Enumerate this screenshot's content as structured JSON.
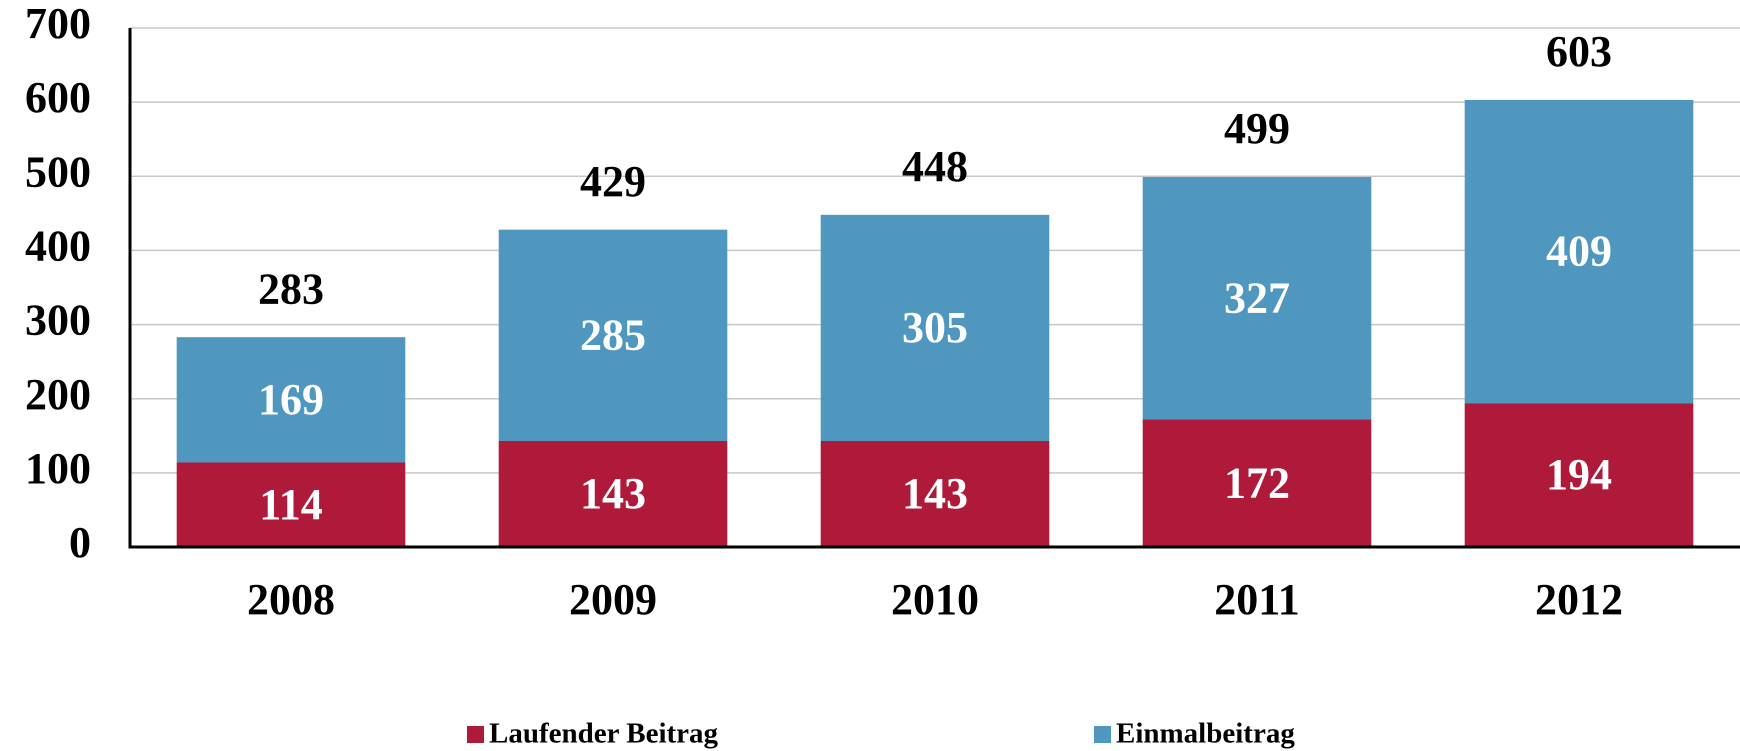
{
  "chart_data": {
    "type": "stacked_bar",
    "categories": [
      "2008",
      "2009",
      "2010",
      "2011",
      "2012"
    ],
    "series": [
      {
        "name": "Laufender Beitrag",
        "color": "#b01a3a",
        "values": [
          114,
          143,
          143,
          172,
          194
        ]
      },
      {
        "name": "Einmalbeitrag",
        "color": "#4f97bf",
        "values": [
          169,
          285,
          305,
          327,
          409
        ]
      }
    ],
    "totals": [
      283,
      429,
      448,
      499,
      603
    ],
    "ylim": [
      0,
      700
    ],
    "yticks": [
      0,
      100,
      200,
      300,
      400,
      500,
      600,
      700
    ],
    "grid": true,
    "legend": "bottom"
  }
}
